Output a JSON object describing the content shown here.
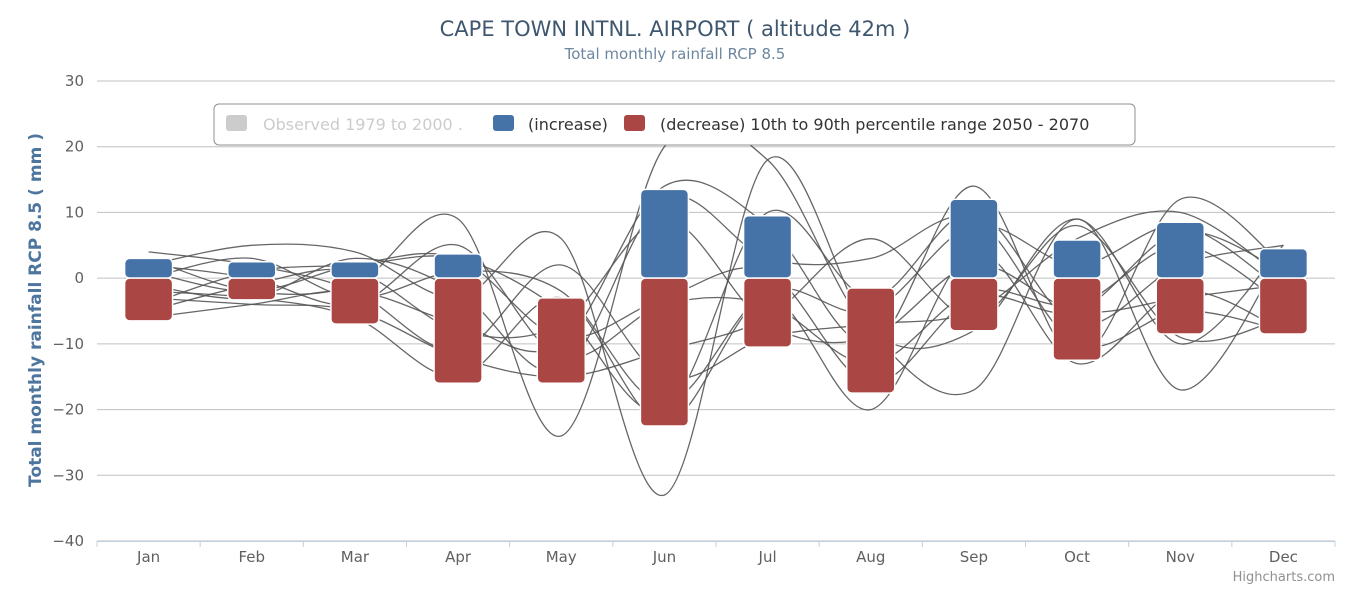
{
  "chart_data": {
    "type": "bar",
    "title": "CAPE TOWN INTNL. AIRPORT ( altitude 42m )",
    "subtitle": "Total monthly rainfall RCP 8.5",
    "ylabel": "Total monthly rainfall RCP 8.5 ( mm )",
    "xlabel": "",
    "ylim": [
      -40,
      30
    ],
    "yticks": [
      -40,
      -30,
      -20,
      -10,
      0,
      10,
      20,
      30
    ],
    "categories": [
      "Jan",
      "Feb",
      "Mar",
      "Apr",
      "May",
      "Jun",
      "Jul",
      "Aug",
      "Sep",
      "Oct",
      "Nov",
      "Dec"
    ],
    "grid": true,
    "legend_position": "top",
    "legend": [
      {
        "label": "Observed 1979 to 2000 .",
        "color": "#cccccc",
        "hidden": true
      },
      {
        "label": "(increase)",
        "color": "#4572a7",
        "hidden": false
      },
      {
        "label": "(decrease) 10th to 90th percentile range 2050 - 2070",
        "color": "#aa4643",
        "hidden": false
      }
    ],
    "series": [
      {
        "name": "(increase)",
        "color": "#4572a7",
        "ranges": [
          [
            0,
            3
          ],
          [
            0,
            2.5
          ],
          [
            0,
            2.5
          ],
          [
            0,
            3.7
          ],
          null,
          [
            0,
            13.5
          ],
          [
            0,
            9.5
          ],
          null,
          [
            0,
            12
          ],
          [
            0,
            5.8
          ],
          [
            0,
            8.5
          ],
          [
            0,
            4.5
          ]
        ]
      },
      {
        "name": "(decrease) 10th to 90th percentile range 2050 - 2070",
        "color": "#aa4643",
        "ranges": [
          [
            -6.5,
            0
          ],
          [
            -3.3,
            0
          ],
          [
            -7,
            0
          ],
          [
            -16,
            0
          ],
          [
            -16,
            -3
          ],
          [
            -22.5,
            0
          ],
          [
            -10.5,
            0
          ],
          [
            -17.5,
            -1.5
          ],
          [
            -8,
            0
          ],
          [
            -12.5,
            0
          ],
          [
            -8.5,
            0
          ],
          [
            -8.5,
            0
          ]
        ]
      }
    ],
    "model_lines": [
      [
        3,
        -2,
        -1,
        9,
        -24,
        20,
        18,
        -8,
        -8,
        9,
        -10,
        5
      ],
      [
        2,
        5,
        4,
        -3,
        6,
        -33,
        18,
        -8,
        -17,
        9,
        -17,
        4
      ],
      [
        -6,
        -4,
        -2,
        -7,
        -10,
        14,
        8,
        -10,
        14,
        -12,
        12,
        2
      ],
      [
        -4,
        1,
        2,
        3,
        -5,
        -20,
        10,
        -3,
        10,
        -7,
        2,
        5
      ],
      [
        -2,
        -3,
        -6,
        -15,
        -3,
        -22,
        -3,
        -20,
        4,
        -13,
        -2,
        -8
      ],
      [
        1,
        -2,
        2,
        3,
        -9,
        -3,
        1,
        -16,
        -3,
        -5,
        7,
        1
      ],
      [
        -3,
        -4,
        -5,
        -12,
        -15,
        -11,
        -6,
        6,
        -6,
        8,
        -9,
        -6
      ],
      [
        0,
        3,
        -3,
        1,
        -2,
        -19,
        -2,
        -5,
        8,
        2,
        8,
        -2
      ],
      [
        -5,
        -1,
        1,
        -8,
        -7,
        9,
        -7,
        -9,
        2,
        -5,
        -3,
        -1
      ],
      [
        2,
        0,
        -4,
        5,
        -12,
        -4,
        -4,
        -13,
        -2,
        -4,
        5,
        -4
      ],
      [
        -1,
        -3,
        3,
        -2,
        -14,
        12,
        3,
        3,
        9,
        -10,
        -5,
        -8
      ],
      [
        4,
        2,
        -2,
        -11,
        2,
        -15,
        -9,
        -7,
        -5,
        6,
        10,
        0
      ]
    ]
  },
  "credits": "Highcharts.com"
}
